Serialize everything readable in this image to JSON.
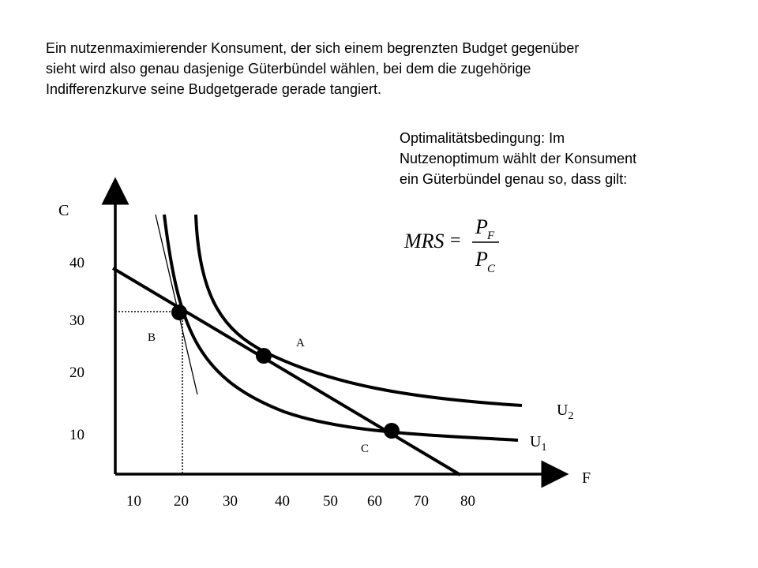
{
  "intro": {
    "line1": "Ein nutzenmaximierender Konsument, der sich einem begrenzten Budget gegenüber",
    "line2": "sieht wird also genau dasjenige Güterbündel wählen, bei dem die zugehörige",
    "line3": "Indifferenzkurve seine Budgetgerade gerade tangiert."
  },
  "optimality": {
    "line1": "Optimalitätsbedingung: Im",
    "line2": "Nutzenoptimum wählt der Konsument",
    "line3": "ein Güterbündel genau so, dass gilt:"
  },
  "formula": {
    "lhs": "MRS",
    "equals": "=",
    "numerator": "P",
    "numerator_sub": "F",
    "denominator": "P",
    "denominator_sub": "C"
  },
  "chart_data": {
    "type": "line",
    "xlabel": "F",
    "ylabel": "C",
    "x_ticks": [
      "10",
      "20",
      "30",
      "40",
      "50",
      "60",
      "70",
      "80"
    ],
    "y_ticks": [
      "40",
      "30",
      "20",
      "10"
    ],
    "budget_line": {
      "from": [
        10,
        38
      ],
      "to": [
        80,
        0
      ]
    },
    "series": [
      {
        "name": "U",
        "sub": "2",
        "description": "higher indifference curve through A"
      },
      {
        "name": "U",
        "sub": "1",
        "description": "lower indifference curve through B and C"
      }
    ],
    "points": [
      {
        "label": "B",
        "x": 20,
        "y": 30
      },
      {
        "label": "A",
        "x": 38,
        "y": 22
      },
      {
        "label": "C",
        "x": 64,
        "y": 9
      }
    ],
    "tangent_line_through": "B",
    "dotted_guides_to": "B"
  }
}
